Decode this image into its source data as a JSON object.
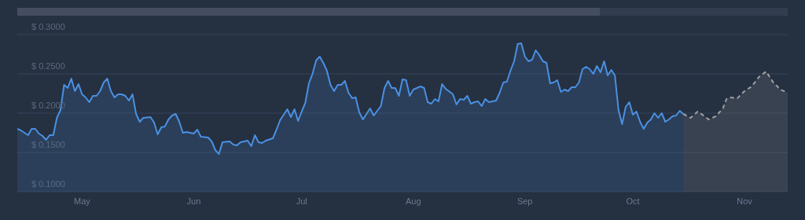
{
  "chart_data": {
    "type": "area",
    "xlim": [
      "--04-13",
      "--11-13"
    ],
    "xticks": [
      {
        "value": "--05-01",
        "label": "May"
      },
      {
        "value": "--06-01",
        "label": "Jun"
      },
      {
        "value": "--07-01",
        "label": "Jul"
      },
      {
        "value": "--08-01",
        "label": "Aug"
      },
      {
        "value": "--09-01",
        "label": "Sep"
      },
      {
        "value": "--10-01",
        "label": "Oct"
      },
      {
        "value": "--11-01",
        "label": "Nov"
      }
    ],
    "ylim": [
      0.1,
      0.3
    ],
    "yticks": [
      {
        "value": 0.1,
        "label": "$ 0.1000"
      },
      {
        "value": 0.15,
        "label": "$ 0.1500"
      },
      {
        "value": 0.2,
        "label": "$ 0.2000"
      },
      {
        "value": 0.25,
        "label": "$ 0.2500"
      },
      {
        "value": 0.3,
        "label": "$ 0.3000"
      }
    ],
    "grid": "y",
    "marker": "none",
    "series": [
      {
        "color": "#4a90e2",
        "line_style": "solid",
        "x": [
          "--04-13",
          "--04-14",
          "--04-16",
          "--04-17",
          "--04-18",
          "--04-19",
          "--04-20",
          "--04-21",
          "--04-22",
          "--04-23",
          "--04-24",
          "--04-25",
          "--04-26",
          "--04-27",
          "--04-28",
          "--04-29",
          "--04-30",
          "--05-01",
          "--05-02",
          "--05-03",
          "--05-04",
          "--05-05",
          "--05-06",
          "--05-07",
          "--05-08",
          "--05-09",
          "--05-10",
          "--05-11",
          "--05-12",
          "--05-13",
          "--05-14",
          "--05-15",
          "--05-16",
          "--05-17",
          "--05-18",
          "--05-20",
          "--05-21",
          "--05-22",
          "--05-23",
          "--05-24",
          "--05-25",
          "--05-26",
          "--05-27",
          "--05-28",
          "--05-29",
          "--05-30",
          "--06-01",
          "--06-02",
          "--06-03",
          "--06-05",
          "--06-06",
          "--06-07",
          "--06-08",
          "--06-09",
          "--06-11",
          "--06-12",
          "--06-13",
          "--06-14",
          "--06-16",
          "--06-17",
          "--06-18",
          "--06-19",
          "--06-20",
          "--06-21",
          "--06-23",
          "--06-24",
          "--06-25",
          "--06-27",
          "--06-28",
          "--06-29",
          "--06-30",
          "--07-01",
          "--07-02",
          "--07-03",
          "--07-04",
          "--07-05",
          "--07-06",
          "--07-07",
          "--07-08",
          "--07-09",
          "--07-10",
          "--07-11",
          "--07-12",
          "--07-13",
          "--07-14",
          "--07-15",
          "--07-16",
          "--07-17",
          "--07-18",
          "--07-20",
          "--07-21",
          "--07-23",
          "--07-24",
          "--07-25",
          "--07-26",
          "--07-27",
          "--07-28",
          "--07-29",
          "--07-30",
          "--07-31",
          "--08-01",
          "--08-03",
          "--08-04",
          "--08-05",
          "--08-06",
          "--08-07",
          "--08-08",
          "--08-09",
          "--08-10",
          "--08-12",
          "--08-13",
          "--08-14",
          "--08-15",
          "--08-16",
          "--08-17",
          "--08-18",
          "--08-19",
          "--08-20",
          "--08-21",
          "--08-22",
          "--08-24",
          "--08-25",
          "--08-26",
          "--08-27",
          "--08-28",
          "--08-29",
          "--08-30",
          "--08-31",
          "--09-01",
          "--09-02",
          "--09-03",
          "--09-04",
          "--09-05",
          "--09-06",
          "--09-07",
          "--09-08",
          "--09-09",
          "--09-10",
          "--09-11",
          "--09-12",
          "--09-13",
          "--09-14",
          "--09-15",
          "--09-16",
          "--09-17",
          "--09-18",
          "--09-19",
          "--09-20",
          "--09-21",
          "--09-22",
          "--09-23",
          "--09-24",
          "--09-25",
          "--09-26",
          "--09-27",
          "--09-28",
          "--09-29",
          "--09-30",
          "--10-01",
          "--10-02",
          "--10-03",
          "--10-04",
          "--10-05",
          "--10-06",
          "--10-07",
          "--10-08",
          "--10-09",
          "--10-10",
          "--10-11",
          "--10-12",
          "--10-13",
          "--10-14",
          "--10-15"
        ],
        "values": [
          0.18,
          0.178,
          0.172,
          0.18,
          0.18,
          0.174,
          0.171,
          0.166,
          0.172,
          0.172,
          0.194,
          0.204,
          0.236,
          0.232,
          0.244,
          0.228,
          0.237,
          0.224,
          0.22,
          0.214,
          0.222,
          0.222,
          0.228,
          0.239,
          0.244,
          0.228,
          0.22,
          0.224,
          0.224,
          0.222,
          0.216,
          0.224,
          0.199,
          0.189,
          0.194,
          0.195,
          0.188,
          0.173,
          0.182,
          0.183,
          0.192,
          0.197,
          0.199,
          0.189,
          0.175,
          0.176,
          0.174,
          0.179,
          0.17,
          0.169,
          0.164,
          0.153,
          0.148,
          0.163,
          0.164,
          0.16,
          0.159,
          0.163,
          0.165,
          0.158,
          0.172,
          0.163,
          0.162,
          0.165,
          0.168,
          0.179,
          0.191,
          0.205,
          0.195,
          0.205,
          0.19,
          0.202,
          0.213,
          0.238,
          0.25,
          0.267,
          0.272,
          0.264,
          0.254,
          0.236,
          0.228,
          0.236,
          0.236,
          0.241,
          0.226,
          0.219,
          0.22,
          0.201,
          0.192,
          0.206,
          0.197,
          0.209,
          0.232,
          0.241,
          0.232,
          0.232,
          0.222,
          0.243,
          0.242,
          0.222,
          0.23,
          0.234,
          0.232,
          0.214,
          0.212,
          0.218,
          0.215,
          0.237,
          0.231,
          0.224,
          0.211,
          0.218,
          0.217,
          0.222,
          0.212,
          0.214,
          0.215,
          0.209,
          0.218,
          0.214,
          0.216,
          0.226,
          0.239,
          0.24,
          0.254,
          0.266,
          0.288,
          0.289,
          0.272,
          0.266,
          0.268,
          0.28,
          0.274,
          0.266,
          0.264,
          0.238,
          0.239,
          0.242,
          0.227,
          0.23,
          0.228,
          0.233,
          0.233,
          0.239,
          0.256,
          0.259,
          0.256,
          0.25,
          0.26,
          0.252,
          0.266,
          0.248,
          0.255,
          0.248,
          0.204,
          0.186,
          0.208,
          0.214,
          0.198,
          0.202,
          0.189,
          0.18,
          0.188,
          0.192,
          0.2,
          0.194,
          0.2,
          0.189,
          0.192,
          0.196,
          0.197,
          0.203,
          0.199
        ]
      },
      {
        "color": "#a0a0a0",
        "line_style": "dashed",
        "x": [
          "--10-15",
          "--10-17",
          "--10-19",
          "--10-20",
          "--10-22",
          "--10-24",
          "--10-26",
          "--10-27",
          "--10-28",
          "--10-30",
          "--11-01",
          "--11-03",
          "--11-05",
          "--11-07",
          "--11-09",
          "--11-11",
          "--11-13"
        ],
        "values": [
          0.199,
          0.194,
          0.202,
          0.199,
          0.192,
          0.196,
          0.206,
          0.218,
          0.22,
          0.219,
          0.228,
          0.234,
          0.246,
          0.253,
          0.239,
          0.23,
          0.226
        ]
      }
    ]
  }
}
